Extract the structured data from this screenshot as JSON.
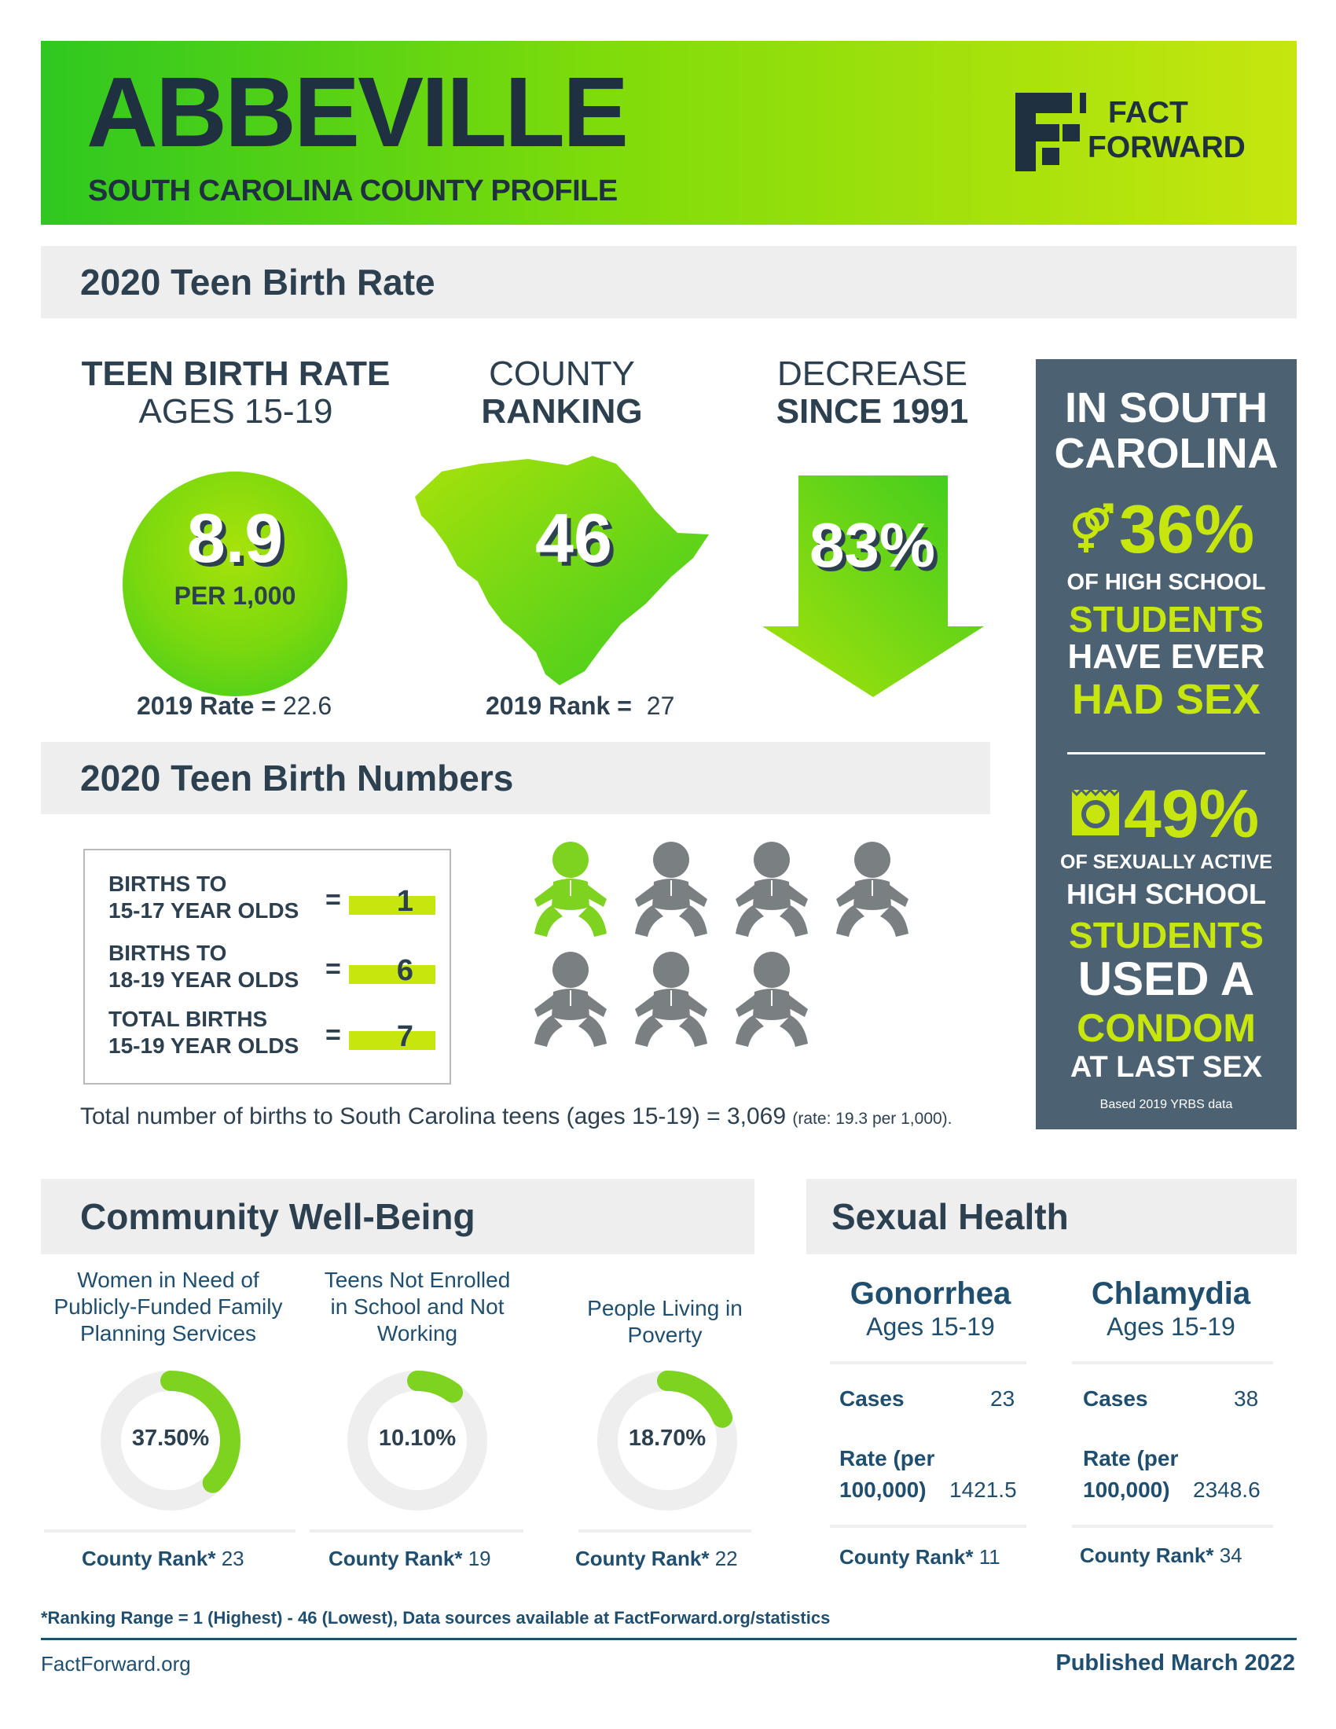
{
  "header": {
    "title": "ABBEVILLE",
    "subtitle": "SOUTH CAROLINA COUNTY PROFILE",
    "logo_line1": "FACT",
    "logo_line2": "FORWARD"
  },
  "birth_rate_section": {
    "title": "2020 Teen Birth Rate",
    "rate": {
      "heading_line1": "TEEN BIRTH RATE",
      "heading_line2": "AGES 15-19",
      "value": "8.9",
      "unit": "PER 1,000",
      "prior_label": "2019 Rate =",
      "prior_value": "22.6"
    },
    "ranking": {
      "heading_line1": "COUNTY",
      "heading_line2": "RANKING",
      "value": "46",
      "prior_label": "2019 Rank =",
      "prior_value": "27"
    },
    "decrease": {
      "heading_line1": "DECREASE",
      "heading_line2": "SINCE 1991",
      "value": "83%"
    }
  },
  "side_panel": {
    "title_line1": "IN SOUTH",
    "title_line2": "CAROLINA",
    "stat1": {
      "value": "36%",
      "line1": "OF HIGH SCHOOL",
      "line2": "STUDENTS",
      "line3": "HAVE EVER",
      "line4": "HAD SEX"
    },
    "stat2": {
      "value": "49%",
      "line1": "OF SEXUALLY ACTIVE",
      "line2": "HIGH SCHOOL",
      "line3": "STUDENTS",
      "line4": "USED A",
      "line5": "CONDOM",
      "line6": "AT LAST SEX"
    },
    "footnote": "Based 2019 YRBS data",
    "accent": "#c6e60e",
    "background": "#4c6272"
  },
  "birth_numbers_section": {
    "title": "2020 Teen Birth Numbers",
    "rows": [
      {
        "label_line1": "BIRTHS TO",
        "label_line2": "15-17 YEAR OLDS",
        "eq": "=",
        "value": "1"
      },
      {
        "label_line1": "BIRTHS TO",
        "label_line2": "18-19 YEAR OLDS",
        "eq": "=",
        "value": "6"
      },
      {
        "label_line1": "TOTAL BIRTHS",
        "label_line2": "15-19 YEAR OLDS",
        "eq": "=",
        "value": "7"
      }
    ],
    "babies": {
      "total": 7,
      "highlighted": 1,
      "highlight_color": "#7ed321",
      "default_color": "#7a7f82"
    },
    "total_text": "Total number of births to South Carolina teens (ages 15-19) = 3,069",
    "total_rate_text": "(rate: 19.3 per 1,000)."
  },
  "community_section": {
    "title": "Community Well-Being",
    "donuts": [
      {
        "title_lines": [
          "Women in Need of",
          "Publicly-Funded Family",
          "Planning Services"
        ],
        "label": "37.50%",
        "percent": 37.5,
        "rank_label": "County Rank*",
        "rank": "23"
      },
      {
        "title_lines": [
          "Teens Not Enrolled",
          "in School and Not",
          "Working"
        ],
        "label": "10.10%",
        "percent": 10.1,
        "rank_label": "County Rank*",
        "rank": "19"
      },
      {
        "title_lines": [
          "People Living in",
          "Poverty"
        ],
        "label": "18.70%",
        "percent": 18.7,
        "rank_label": "County Rank*",
        "rank": "22"
      }
    ],
    "donut_color": "#7ed321",
    "track_color": "#eeeeee"
  },
  "sexual_health_section": {
    "title": "Sexual Health",
    "diseases": [
      {
        "name": "Gonorrhea",
        "ages": "Ages 15-19",
        "cases_label": "Cases",
        "cases": "23",
        "rate_label_line1": "Rate (per",
        "rate_label_line2": "100,000)",
        "rate": "1421.5",
        "rank_label": "County Rank*",
        "rank": "11"
      },
      {
        "name": "Chlamydia",
        "ages": "Ages 15-19",
        "cases_label": "Cases",
        "cases": "38",
        "rate_label_line1": "Rate (per",
        "rate_label_line2": "100,000)",
        "rate": "2348.6",
        "rank_label": "County Rank*",
        "rank": "34"
      }
    ]
  },
  "footer": {
    "note": "*Ranking Range = 1 (Highest) - 46 (Lowest), Data sources available at FactForward.org/statistics",
    "site": "FactForward.org",
    "published": "Published March 2022"
  }
}
